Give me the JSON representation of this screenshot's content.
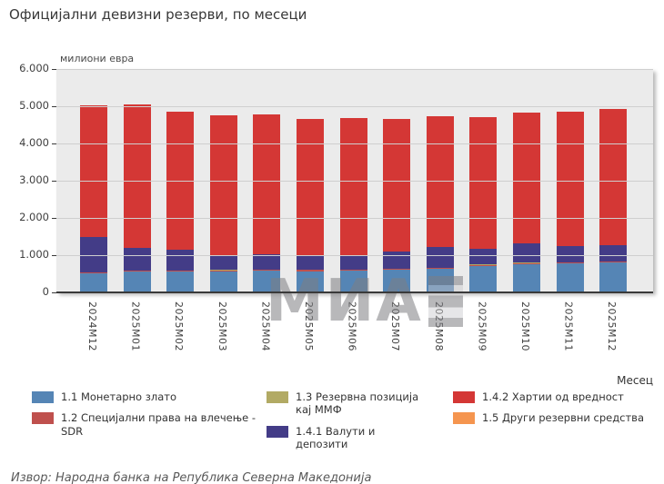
{
  "title": "Официјални девизни резерви, по месеци",
  "unit_label": "милиони евра",
  "x_axis_label": "Месец",
  "watermark_text": "МИА",
  "source": "Извор: Народна банка на Република Северна Македонија",
  "chart_data": {
    "type": "bar",
    "stacked": true,
    "title": "Официјални девизни резерви, по месеци",
    "ylabel": "милиони евра",
    "xlabel": "Месец",
    "ylim": [
      0,
      6000
    ],
    "grid": true,
    "legend_position": "bottom",
    "y_ticks": [
      "0",
      "1.000",
      "2.000",
      "3.000",
      "4.000",
      "5.000",
      "6.000"
    ],
    "categories": [
      "2024M12",
      "2025M01",
      "2025M02",
      "2025M03",
      "2025M04",
      "2025M05",
      "2025M06",
      "2025M07",
      "2025M08",
      "2025M09",
      "2025M10",
      "2025M11",
      "2025M12"
    ],
    "series": [
      {
        "name": "1.1 Монетарно злато",
        "color": "#5585b5",
        "values": [
          510,
          560,
          555,
          565,
          575,
          570,
          580,
          605,
          625,
          710,
          760,
          780,
          800
        ]
      },
      {
        "name": "1.2 Специјални права на влечење - SDR",
        "color": "#bf504d",
        "values": [
          30,
          30,
          30,
          30,
          30,
          30,
          30,
          30,
          30,
          30,
          30,
          30,
          30
        ]
      },
      {
        "name": "1.3 Резервна позиција кај ММФ",
        "color": "#b2aa64",
        "values": [
          5,
          5,
          5,
          5,
          5,
          5,
          5,
          5,
          5,
          5,
          5,
          5,
          5
        ]
      },
      {
        "name": "1.4.1 Валути и депозити",
        "color": "#433c87",
        "values": [
          940,
          600,
          545,
          405,
          415,
          380,
          380,
          465,
          565,
          430,
          520,
          440,
          440
        ]
      },
      {
        "name": "1.4.2 Хартии од вредност",
        "color": "#d43735",
        "values": [
          3545,
          3855,
          3715,
          3755,
          3745,
          3685,
          3685,
          3545,
          3515,
          3535,
          3515,
          3595,
          3645
        ]
      },
      {
        "name": "1.5 Други резервни средства",
        "color": "#f5954f",
        "values": [
          0,
          0,
          0,
          0,
          0,
          0,
          0,
          0,
          0,
          0,
          0,
          0,
          0
        ]
      }
    ],
    "totals": [
      5030,
      5050,
      4850,
      4760,
      4770,
      4670,
      4680,
      4650,
      4740,
      4710,
      4830,
      4850,
      4920
    ]
  }
}
